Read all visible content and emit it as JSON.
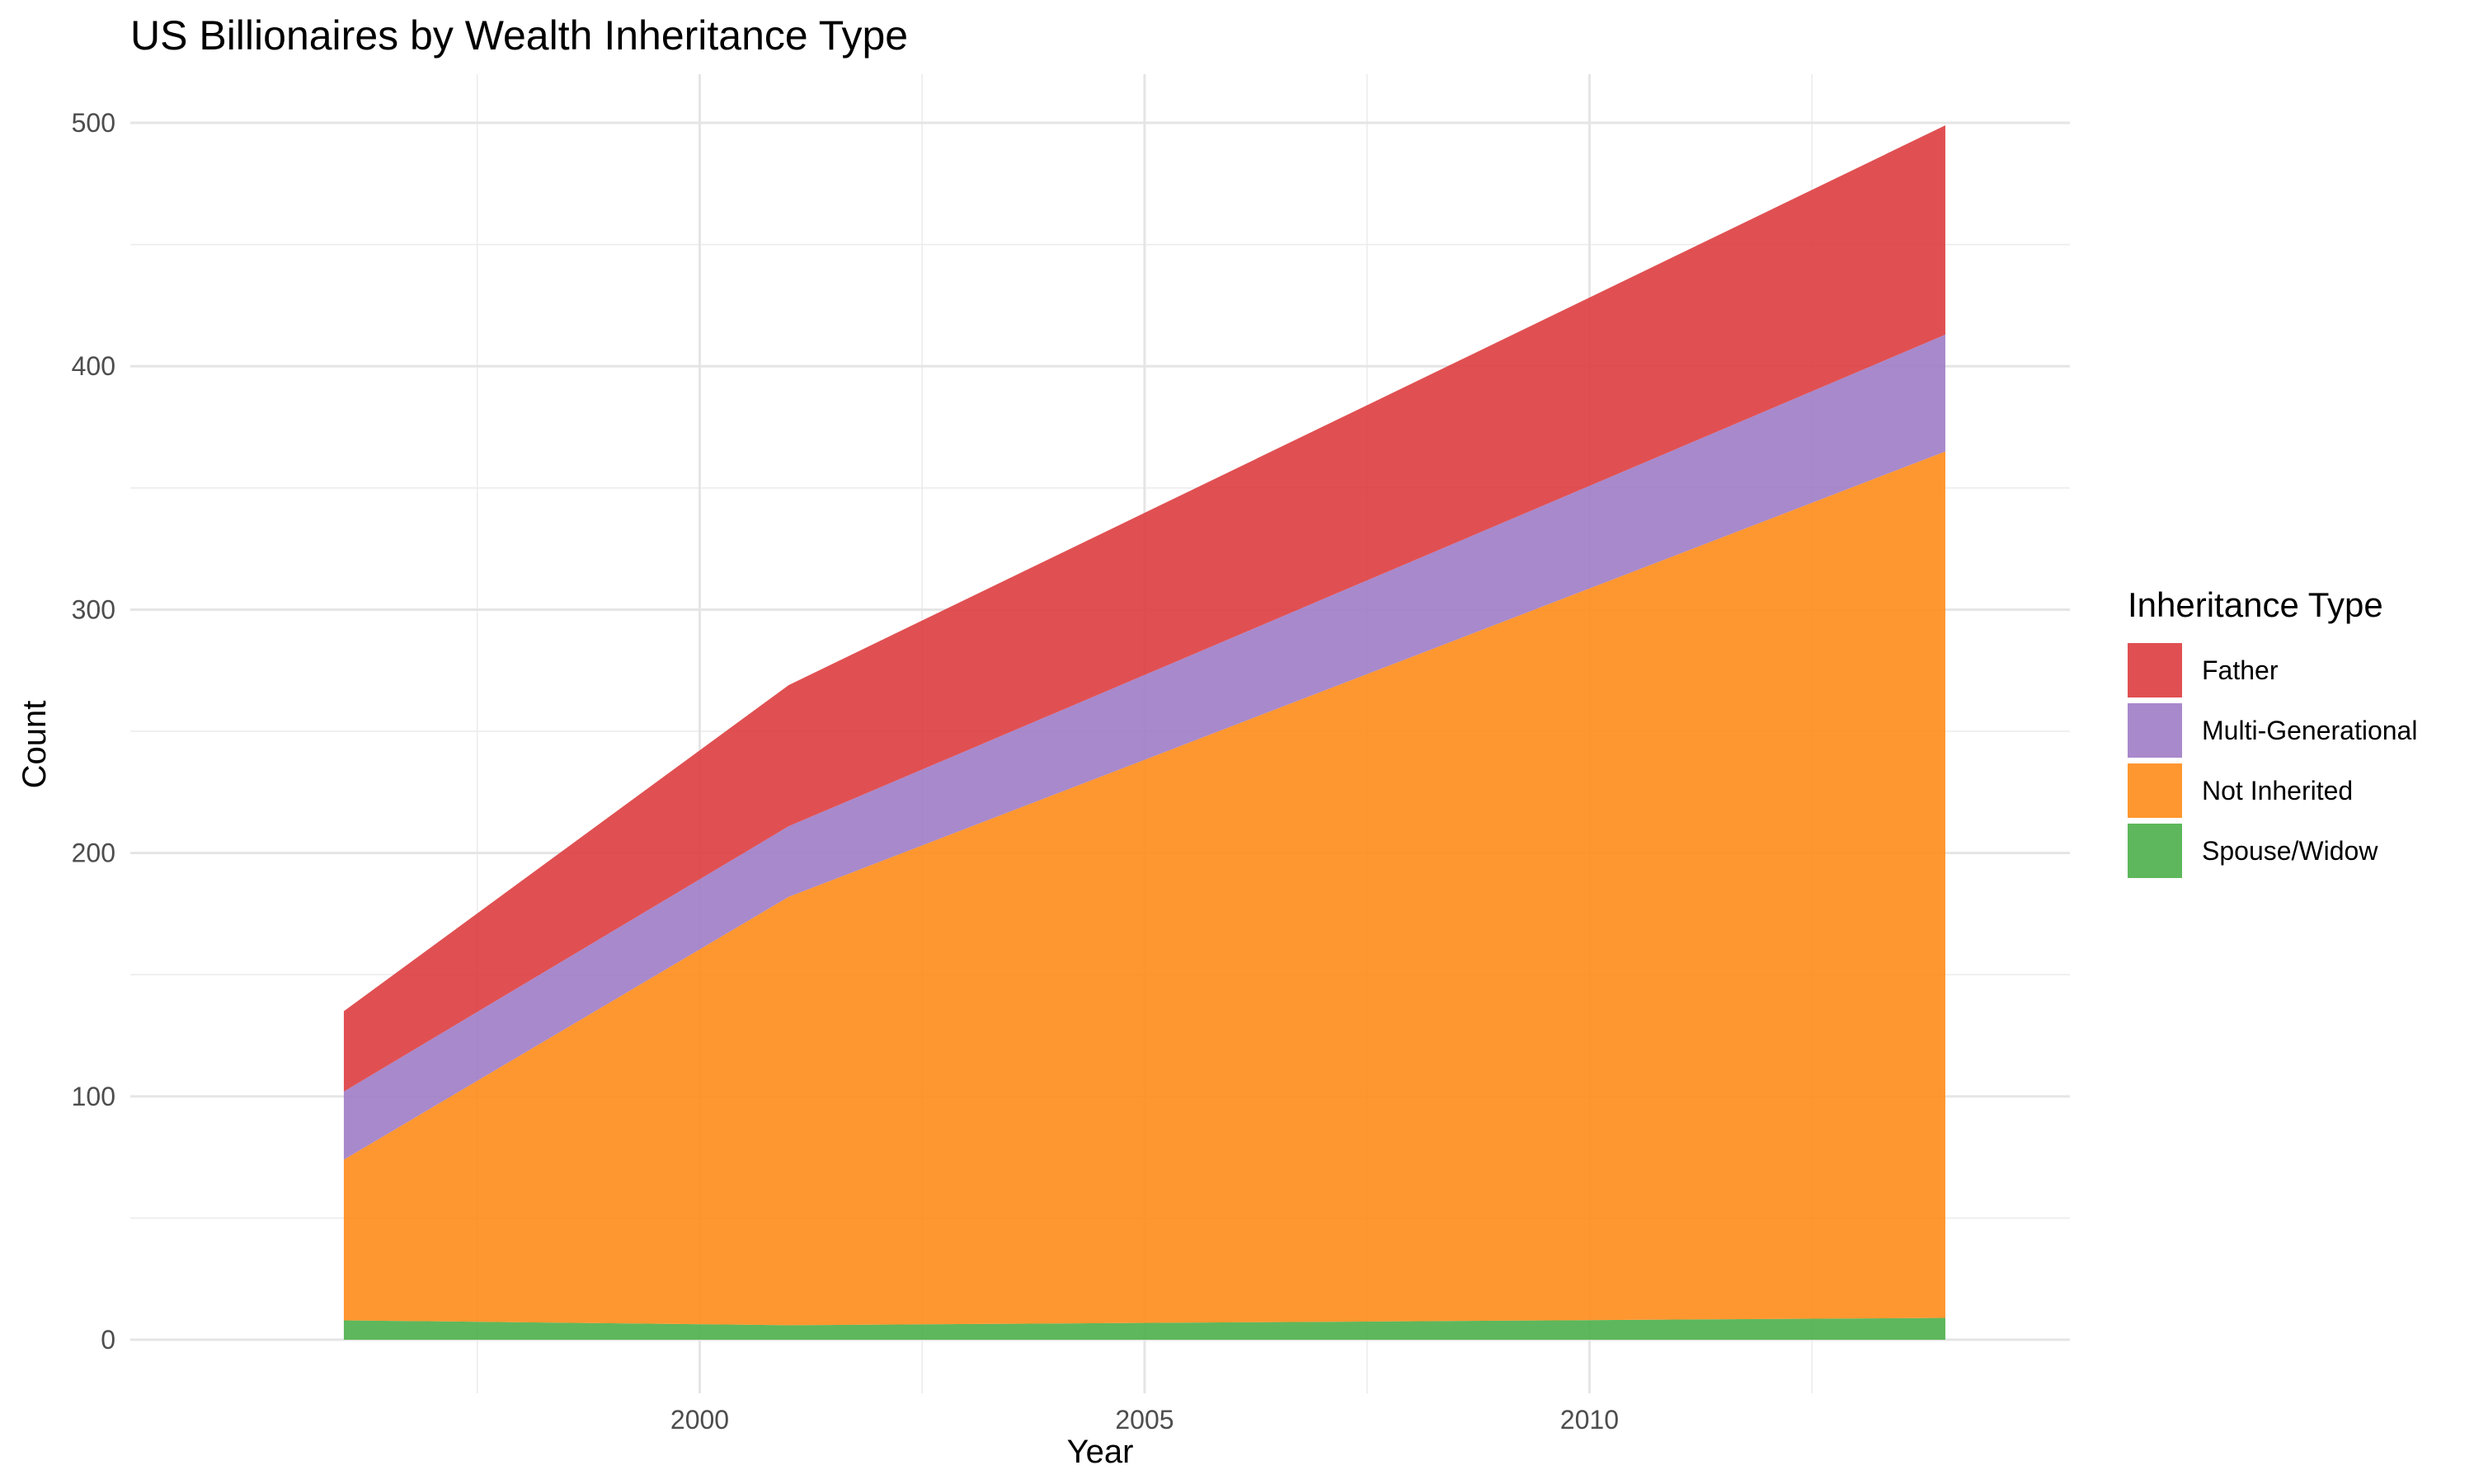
{
  "chart_data": {
    "type": "area",
    "stacked": true,
    "title": "US Billionaires by Wealth Inheritance Type",
    "xlabel": "Year",
    "ylabel": "Count",
    "x": [
      1996,
      2001,
      2014
    ],
    "xlim": [
      1993.6,
      2015.4
    ],
    "ylim": [
      -22,
      520
    ],
    "xticks": [
      2000,
      2005,
      2010
    ],
    "yticks": [
      0,
      100,
      200,
      300,
      400,
      500
    ],
    "grid": true,
    "legend_title": "Inheritance Type",
    "legend_position": "right",
    "series": [
      {
        "name": "Spouse/Widow",
        "color": "#4daf4a",
        "values": [
          8,
          6,
          9
        ]
      },
      {
        "name": "Not Inherited",
        "color": "#ff8c1a",
        "values": [
          66,
          176,
          356
        ]
      },
      {
        "name": "Multi-Generational",
        "color": "#9e7cc7",
        "values": [
          28,
          29,
          48
        ]
      },
      {
        "name": "Father",
        "color": "#dd3d3f",
        "values": [
          33,
          58,
          86
        ]
      }
    ],
    "legend_order": [
      "Father",
      "Multi-Generational",
      "Not Inherited",
      "Spouse/Widow"
    ]
  }
}
